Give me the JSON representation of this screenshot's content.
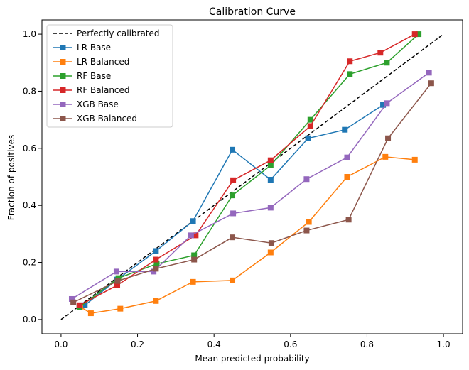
{
  "chart_data": {
    "type": "line",
    "title": "Calibration Curve",
    "xlabel": "Mean predicted probability",
    "ylabel": "Fraction of positives",
    "xlim": [
      -0.05,
      1.05
    ],
    "ylim": [
      -0.05,
      1.05
    ],
    "xticks": [
      0.0,
      0.2,
      0.4,
      0.6,
      0.8,
      1.0
    ],
    "yticks": [
      0.0,
      0.2,
      0.4,
      0.6,
      0.8,
      1.0
    ],
    "xtick_labels": [
      "0.0",
      "0.2",
      "0.4",
      "0.6",
      "0.8",
      "1.0"
    ],
    "ytick_labels": [
      "0.0",
      "0.2",
      "0.4",
      "0.6",
      "0.8",
      "1.0"
    ],
    "grid": false,
    "legend_position": "upper-left",
    "reference": {
      "name": "Perfectly calibrated",
      "x": [
        0.0,
        1.0
      ],
      "y": [
        0.0,
        1.0
      ],
      "color": "#000000",
      "dashed": true
    },
    "series": [
      {
        "name": "LR Base",
        "color": "#1f77b4",
        "x": [
          0.062,
          0.147,
          0.248,
          0.345,
          0.448,
          0.548,
          0.646,
          0.742,
          0.842
        ],
        "y": [
          0.05,
          0.14,
          0.24,
          0.345,
          0.595,
          0.49,
          0.635,
          0.665,
          0.752
        ]
      },
      {
        "name": "LR Balanced",
        "color": "#ff7f0e",
        "x": [
          0.05,
          0.078,
          0.155,
          0.248,
          0.345,
          0.448,
          0.548,
          0.648,
          0.748,
          0.848,
          0.925
        ],
        "y": [
          0.045,
          0.022,
          0.038,
          0.065,
          0.132,
          0.137,
          0.235,
          0.342,
          0.5,
          0.57,
          0.56
        ]
      },
      {
        "name": "RF Base",
        "color": "#2ca02c",
        "x": [
          0.048,
          0.15,
          0.25,
          0.348,
          0.448,
          0.548,
          0.652,
          0.755,
          0.852,
          0.935
        ],
        "y": [
          0.043,
          0.145,
          0.195,
          0.225,
          0.435,
          0.54,
          0.7,
          0.86,
          0.9,
          1.0
        ]
      },
      {
        "name": "RF Balanced",
        "color": "#d62728",
        "x": [
          0.048,
          0.147,
          0.248,
          0.352,
          0.45,
          0.548,
          0.652,
          0.755,
          0.835,
          0.925
        ],
        "y": [
          0.05,
          0.12,
          0.21,
          0.295,
          0.488,
          0.558,
          0.678,
          0.905,
          0.935,
          1.0
        ]
      },
      {
        "name": "XGB Base",
        "color": "#9467bd",
        "x": [
          0.028,
          0.145,
          0.242,
          0.34,
          0.45,
          0.548,
          0.642,
          0.748,
          0.852,
          0.962
        ],
        "y": [
          0.072,
          0.168,
          0.168,
          0.295,
          0.372,
          0.392,
          0.492,
          0.568,
          0.758,
          0.865
        ]
      },
      {
        "name": "XGB Balanced",
        "color": "#8c564b",
        "x": [
          0.032,
          0.148,
          0.248,
          0.348,
          0.448,
          0.55,
          0.642,
          0.752,
          0.855,
          0.968
        ],
        "y": [
          0.06,
          0.135,
          0.178,
          0.21,
          0.288,
          0.268,
          0.312,
          0.35,
          0.635,
          0.828
        ]
      }
    ]
  }
}
